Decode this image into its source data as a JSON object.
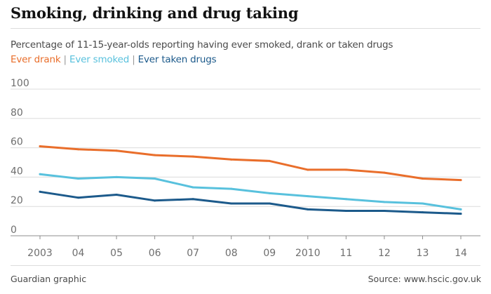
{
  "header": {
    "title": "Smoking, drinking and drug taking",
    "subtitle": "Percentage of 11-15-year-olds reporting having ever smoked, drank or taken drugs"
  },
  "legend": {
    "separator": "|",
    "items": [
      {
        "label": "Ever drank",
        "color": "#e96e2b"
      },
      {
        "label": "Ever smoked",
        "color": "#58c1dd"
      },
      {
        "label": "Ever taken drugs",
        "color": "#1c5a8b"
      }
    ]
  },
  "chart_data": {
    "type": "line",
    "categories": [
      "2003",
      "04",
      "05",
      "06",
      "07",
      "08",
      "09",
      "2010",
      "11",
      "12",
      "13",
      "14"
    ],
    "ylim": [
      0,
      100
    ],
    "yticks": [
      "100",
      "80",
      "60",
      "40",
      "20",
      "0"
    ],
    "grid": true,
    "series": [
      {
        "name": "Ever drank",
        "color": "#e96e2b",
        "values": [
          61,
          59,
          58,
          55,
          54,
          52,
          51,
          45,
          45,
          43,
          39,
          38
        ]
      },
      {
        "name": "Ever smoked",
        "color": "#58c1dd",
        "values": [
          42,
          39,
          40,
          39,
          33,
          32,
          29,
          27,
          25,
          23,
          22,
          18
        ]
      },
      {
        "name": "Ever taken drugs",
        "color": "#1c5a8b",
        "values": [
          30,
          26,
          28,
          24,
          25,
          22,
          22,
          18,
          17,
          17,
          16,
          15
        ]
      }
    ]
  },
  "footer": {
    "credit": "Guardian graphic",
    "source": "Source: www.hscic.gov.uk"
  }
}
